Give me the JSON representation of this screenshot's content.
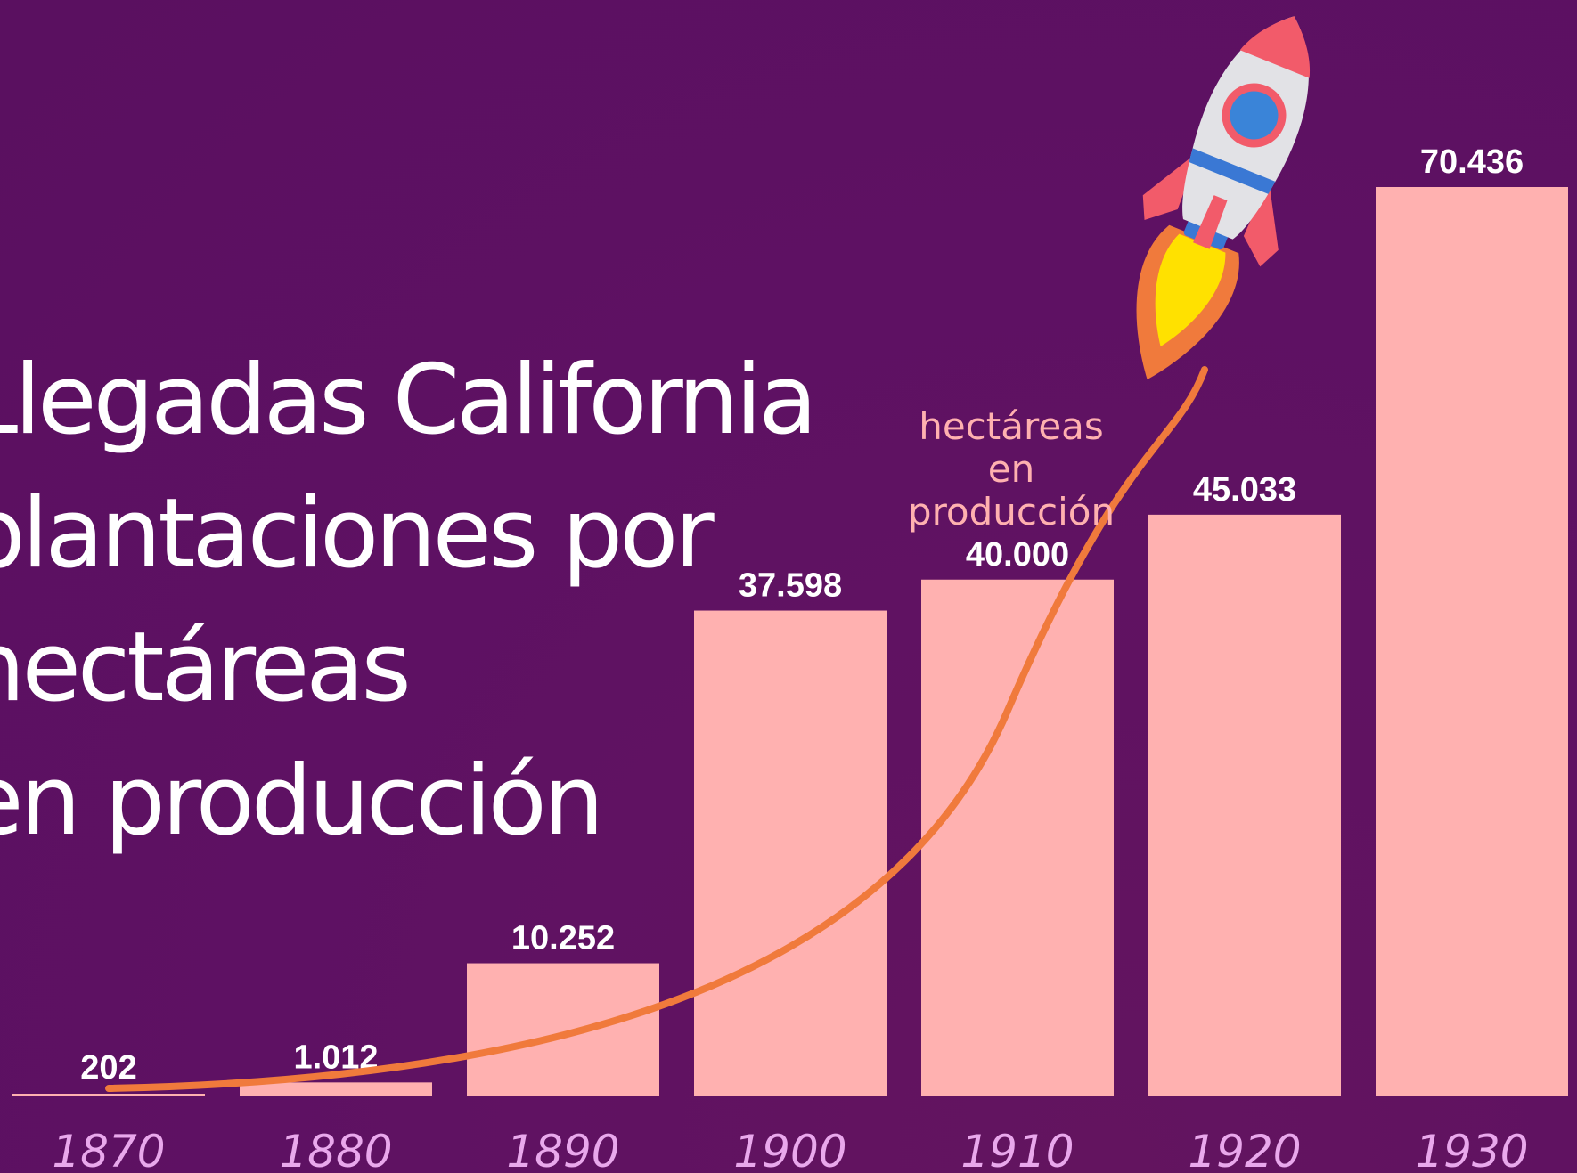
{
  "title_lines": [
    "Llegadas California",
    "plantaciones por",
    "hectáreas",
    "en producción"
  ],
  "annotation": [
    "hectáreas en",
    "producción"
  ],
  "colors": {
    "background": "#5e1163",
    "bar": "#ffb1b0",
    "value_label": "#ffffff",
    "year_label": "#e9a8ec",
    "curve": "#f07a3c",
    "annotation": "#ffb1b0",
    "title": "#ffffff"
  },
  "icons": [
    "rocket-icon"
  ],
  "chart_data": {
    "type": "bar",
    "categories": [
      "1870",
      "1880",
      "1890",
      "1900",
      "1910",
      "1920",
      "1930"
    ],
    "values": [
      202,
      1012,
      10252,
      37598,
      40000,
      45033,
      70436
    ],
    "value_labels": [
      "202",
      "1.012",
      "10.252",
      "37.598",
      "40.000",
      "45.033",
      "70.436"
    ],
    "ylim": [
      0,
      70436
    ],
    "grid": false,
    "legend": "none"
  }
}
